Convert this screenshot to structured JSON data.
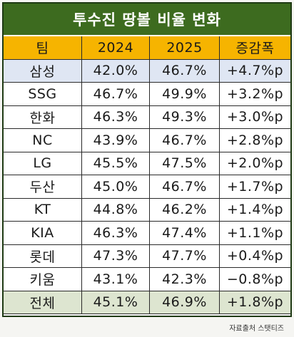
{
  "title": "투수진 땅볼 비율 변화",
  "headers": {
    "team": "팀",
    "y2024": "2024",
    "y2025": "2025",
    "change": "증감폭"
  },
  "rows": [
    {
      "team": "삼성",
      "y2024": "42.0%",
      "y2025": "46.7%",
      "change": "+4.7%p"
    },
    {
      "team": "SSG",
      "y2024": "46.7%",
      "y2025": "49.9%",
      "change": "+3.2%p"
    },
    {
      "team": "한화",
      "y2024": "46.3%",
      "y2025": "49.3%",
      "change": "+3.0%p"
    },
    {
      "team": "NC",
      "y2024": "43.9%",
      "y2025": "46.7%",
      "change": "+2.8%p"
    },
    {
      "team": "LG",
      "y2024": "45.5%",
      "y2025": "47.5%",
      "change": "+2.0%p"
    },
    {
      "team": "두산",
      "y2024": "45.0%",
      "y2025": "46.7%",
      "change": "+1.7%p"
    },
    {
      "team": "KT",
      "y2024": "44.8%",
      "y2025": "46.2%",
      "change": "+1.4%p"
    },
    {
      "team": "KIA",
      "y2024": "46.3%",
      "y2025": "47.4%",
      "change": "+1.1%p"
    },
    {
      "team": "롯데",
      "y2024": "47.3%",
      "y2025": "47.7%",
      "change": "+0.4%p"
    },
    {
      "team": "키움",
      "y2024": "43.1%",
      "y2025": "42.3%",
      "change": "−0.8%p"
    },
    {
      "team": "전체",
      "y2024": "45.1%",
      "y2025": "46.9%",
      "change": "+1.8%p"
    }
  ],
  "source": "자료출처 스탯티즈",
  "colors": {
    "title_bg": "#3d6b1f",
    "header_bg": "#f6b400",
    "highlight_row_bg": "#dfe6f3",
    "total_row_bg": "#dde5d0"
  }
}
